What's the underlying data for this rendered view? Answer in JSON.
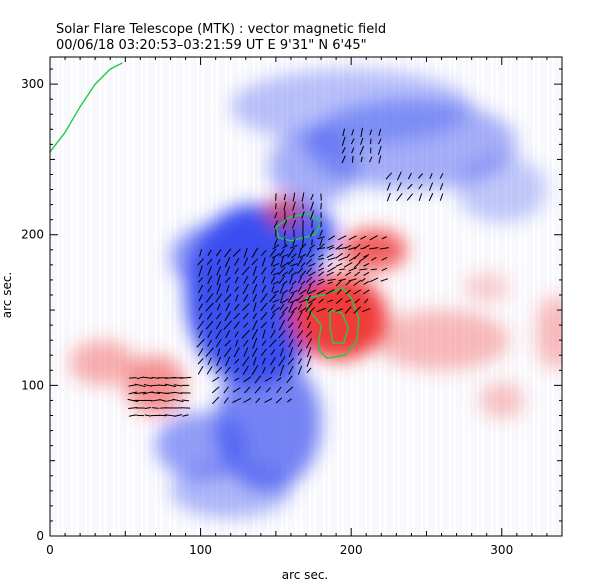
{
  "chart_data": {
    "type": "heatmap",
    "title": "Solar Flare Telescope (MTK) : vector magnetic field",
    "subtitle": "00/06/18  03:20:53–03:21:59 UT     E 9'31\"   N 6'45\"",
    "xlabel": "arc sec.",
    "ylabel": "arc sec.",
    "xlim": [
      0,
      340
    ],
    "ylim": [
      0,
      318
    ],
    "xticks": [
      0,
      100,
      200,
      300
    ],
    "yticks": [
      0,
      100,
      200,
      300
    ],
    "colors": {
      "negative_polarity": "#3a4ff0",
      "positive_polarity": "#f03a3a",
      "contour": "#22cc44",
      "vector": "#000000",
      "scan_lines": "#b8bcec"
    },
    "regions": [
      {
        "polarity": "negative",
        "x": 135,
        "y": 160,
        "rx": 45,
        "ry": 60,
        "s": 1.0
      },
      {
        "polarity": "negative",
        "x": 160,
        "y": 200,
        "rx": 30,
        "ry": 22,
        "s": 0.9
      },
      {
        "polarity": "negative",
        "x": 145,
        "y": 75,
        "rx": 35,
        "ry": 45,
        "s": 0.7
      },
      {
        "polarity": "negative",
        "x": 110,
        "y": 185,
        "rx": 30,
        "ry": 22,
        "s": 0.6
      },
      {
        "polarity": "negative",
        "x": 240,
        "y": 260,
        "rx": 70,
        "ry": 30,
        "s": 0.45
      },
      {
        "polarity": "negative",
        "x": 175,
        "y": 245,
        "rx": 30,
        "ry": 25,
        "s": 0.45
      },
      {
        "polarity": "negative",
        "x": 100,
        "y": 60,
        "rx": 30,
        "ry": 22,
        "s": 0.55
      },
      {
        "polarity": "negative",
        "x": 200,
        "y": 285,
        "rx": 80,
        "ry": 25,
        "s": 0.35
      },
      {
        "polarity": "negative",
        "x": 300,
        "y": 230,
        "rx": 30,
        "ry": 22,
        "s": 0.3
      },
      {
        "polarity": "negative",
        "x": 120,
        "y": 30,
        "rx": 40,
        "ry": 18,
        "s": 0.4
      },
      {
        "polarity": "positive",
        "x": 192,
        "y": 145,
        "rx": 32,
        "ry": 28,
        "s": 1.0
      },
      {
        "polarity": "positive",
        "x": 215,
        "y": 190,
        "rx": 22,
        "ry": 14,
        "s": 0.8
      },
      {
        "polarity": "positive",
        "x": 155,
        "y": 215,
        "rx": 12,
        "ry": 10,
        "s": 0.7
      },
      {
        "polarity": "positive",
        "x": 70,
        "y": 100,
        "rx": 20,
        "ry": 20,
        "s": 0.55
      },
      {
        "polarity": "positive",
        "x": 35,
        "y": 115,
        "rx": 22,
        "ry": 15,
        "s": 0.4
      },
      {
        "polarity": "positive",
        "x": 260,
        "y": 130,
        "rx": 45,
        "ry": 20,
        "s": 0.35
      },
      {
        "polarity": "positive",
        "x": 300,
        "y": 90,
        "rx": 15,
        "ry": 12,
        "s": 0.3
      },
      {
        "polarity": "positive",
        "x": 335,
        "y": 135,
        "rx": 12,
        "ry": 25,
        "s": 0.35
      },
      {
        "polarity": "positive",
        "x": 290,
        "y": 165,
        "rx": 15,
        "ry": 10,
        "s": 0.25
      }
    ],
    "contours": [
      {
        "name": "positive-core-outer",
        "points": [
          [
            170,
            158
          ],
          [
            182,
            160
          ],
          [
            194,
            165
          ],
          [
            200,
            158
          ],
          [
            205,
            145
          ],
          [
            204,
            130
          ],
          [
            196,
            120
          ],
          [
            184,
            118
          ],
          [
            178,
            124
          ],
          [
            180,
            140
          ],
          [
            172,
            150
          ],
          [
            170,
            158
          ]
        ]
      },
      {
        "name": "positive-core-inner",
        "points": [
          [
            186,
            150
          ],
          [
            194,
            148
          ],
          [
            198,
            138
          ],
          [
            195,
            128
          ],
          [
            188,
            128
          ],
          [
            186,
            138
          ],
          [
            186,
            150
          ]
        ]
      },
      {
        "name": "negative-spot",
        "points": [
          [
            150,
            205
          ],
          [
            160,
            212
          ],
          [
            172,
            214
          ],
          [
            180,
            208
          ],
          [
            176,
            200
          ],
          [
            168,
            198
          ],
          [
            160,
            196
          ],
          [
            152,
            198
          ],
          [
            150,
            205
          ]
        ]
      },
      {
        "name": "corner-edge",
        "points": [
          [
            0,
            255
          ],
          [
            10,
            268
          ],
          [
            20,
            285
          ],
          [
            30,
            300
          ],
          [
            40,
            310
          ],
          [
            48,
            314
          ]
        ]
      }
    ],
    "vector_fields": [
      {
        "x0": 100,
        "x1": 175,
        "y0": 110,
        "y1": 190,
        "step": 6,
        "angle": 60,
        "len": 6
      },
      {
        "x0": 150,
        "x1": 210,
        "y0": 150,
        "y1": 195,
        "step": 6,
        "angle": 35,
        "len": 5
      },
      {
        "x0": 180,
        "x1": 225,
        "y0": 170,
        "y1": 200,
        "step": 7,
        "angle": 20,
        "len": 5
      },
      {
        "x0": 195,
        "x1": 220,
        "y0": 250,
        "y1": 270,
        "step": 6,
        "angle": 75,
        "len": 5
      },
      {
        "x0": 225,
        "x1": 265,
        "y0": 225,
        "y1": 245,
        "step": 7,
        "angle": 60,
        "len": 5
      },
      {
        "x0": 55,
        "x1": 90,
        "y0": 80,
        "y1": 105,
        "step": 5,
        "angle": 0,
        "len": 6
      },
      {
        "x0": 150,
        "x1": 180,
        "y0": 195,
        "y1": 225,
        "step": 6,
        "angle": 80,
        "len": 5
      },
      {
        "x0": 110,
        "x1": 160,
        "y0": 90,
        "y1": 110,
        "step": 7,
        "angle": 40,
        "len": 5
      }
    ]
  }
}
